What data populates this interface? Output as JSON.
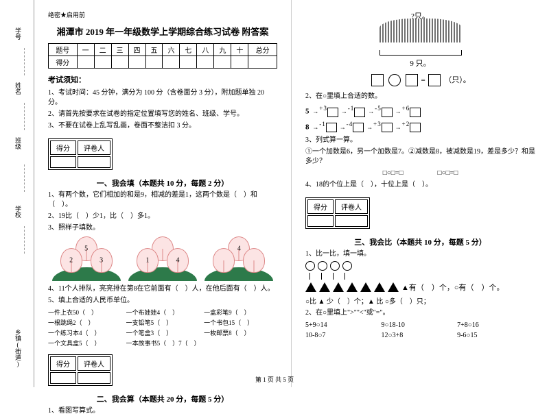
{
  "binding": {
    "l1": "学号",
    "l2": "姓名",
    "l3": "班级",
    "l4": "学校",
    "l5": "乡镇(街道)",
    "side1": "密",
    "side2": "封",
    "side3": "线",
    "side4": "内",
    "side5": "不",
    "side6": "答",
    "side7": "题"
  },
  "secret": "绝密★启用前",
  "title": "湘潭市 2019 年一年级数学上学期综合练习试卷 附答案",
  "scoreHeaders": [
    "题号",
    "一",
    "二",
    "三",
    "四",
    "五",
    "六",
    "七",
    "八",
    "九",
    "十",
    "总分"
  ],
  "scoreRow": "得分",
  "noticeTitle": "考试须知：",
  "notices": [
    "1、考试时间：45 分钟，满分为 100 分（含卷面分 3 分），附加题单独 20 分。",
    "2、请首先按要求在试卷的指定位置填写您的姓名、班级、学号。",
    "3、不要在试卷上乱写乱画，卷面不整洁扣 3 分。"
  ],
  "scoreBox": {
    "score": "得分",
    "grader": "评卷人"
  },
  "sections": {
    "s1": "一、我会填（本题共 10 分，每题 2 分）",
    "s2": "二、我会算（本题共 20 分，每题 5 分）",
    "s3": "三、我会比（本题共 10 分，每题 5 分）"
  },
  "q1_1": "1、有两个数，它们相加的和是9，相减的差是1，这两个数是（　）和（　）。",
  "q1_2": "2、19比（　）少1，比（　）多1。",
  "q1_3": "3、照样子填数。",
  "peachNums": {
    "a": "5",
    "b": "2",
    "c": "3",
    "d": "1",
    "e": "4",
    "f": "4"
  },
  "q1_4": "4、11个人排队，亮亮排在第8在它前面有（　）人，在他后面有（　）人。",
  "q1_5": "5、填上合适的人民币单位。",
  "items": [
    [
      "一件上衣50（　）",
      "一个布娃娃4（　）",
      "一盒彩笔9（　）"
    ],
    [
      "一根跳绳2（　）",
      "一支铅笔5（　）",
      "一个书包15（　）"
    ],
    [
      "一个练习本4（　）",
      "一个笔盒3（　）",
      "一枚邮票8（　）"
    ],
    [
      "一个文具盒5（　）",
      "一本故事书5（　）7（　）",
      ""
    ]
  ],
  "q2_1": "1、看图写算式。",
  "rabbitQ": "?只。",
  "rabbitCount": "9 只。",
  "eqSuffix": "（只）。",
  "q2_2": "2、在○里填上合适的数。",
  "chain1": {
    "start": "5",
    "ops": [
      "+3",
      "-1",
      "-5",
      "+6"
    ]
  },
  "chain2": {
    "start": "8",
    "ops": [
      "-1",
      "-4",
      "+3",
      "+2"
    ]
  },
  "q2_3": "3、列式算一算。",
  "q2_3a": "①一个加数是6，另一个加数是7。②减数是8，被减数是19，差是多少？和是多少？",
  "q2_3boxes": "□○□=□　　　　　□○□=□",
  "q2_4": "4、18的个位上是（　），十位上是（　）。",
  "q3_1": "1、比一比，填一填。",
  "shapeText1": "▲有（　）个，○有（　）个。",
  "shapeText2": "○比 ▲ 少（　）个；▲ 比 ○多（　）只；",
  "q3_2": "2、在○里填上\">\"\"<\"或\"=\"。",
  "compares": [
    "5+9○14",
    "9○18-10",
    "7+8○16",
    "10-8○7",
    "12○3+8",
    "9-6○15"
  ],
  "footer": "第 1 页 共 5 页"
}
